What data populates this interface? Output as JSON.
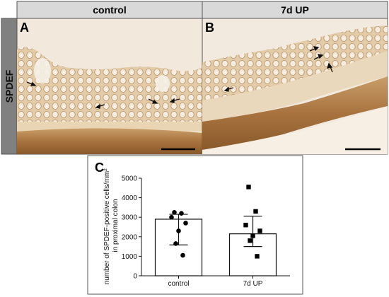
{
  "figure": {
    "columns": [
      "control",
      "7d UP"
    ],
    "row_label": "SPDEF",
    "panels": [
      "A",
      "B",
      "C"
    ]
  },
  "micrographs": {
    "stain_color": "#c9a67a",
    "tissue_dark": "#8a5a2b"
  },
  "chart_data": {
    "type": "bar",
    "categories": [
      "control",
      "7d UP"
    ],
    "values": [
      2900,
      2150
    ],
    "sd_upper": [
      3150,
      3050
    ],
    "sd_lower": [
      1580,
      1500
    ],
    "points": [
      [
        3250,
        3200,
        3000,
        2700,
        2300,
        1650,
        1050
      ],
      [
        4550,
        3300,
        2600,
        2300,
        2050,
        1800,
        1000
      ]
    ],
    "ylabel": "number of SPDEF-positive cells/mm² in proximal colon",
    "ylim": [
      0,
      5000
    ],
    "yticks": [
      0,
      1000,
      2000,
      3000,
      4000,
      5000
    ]
  }
}
